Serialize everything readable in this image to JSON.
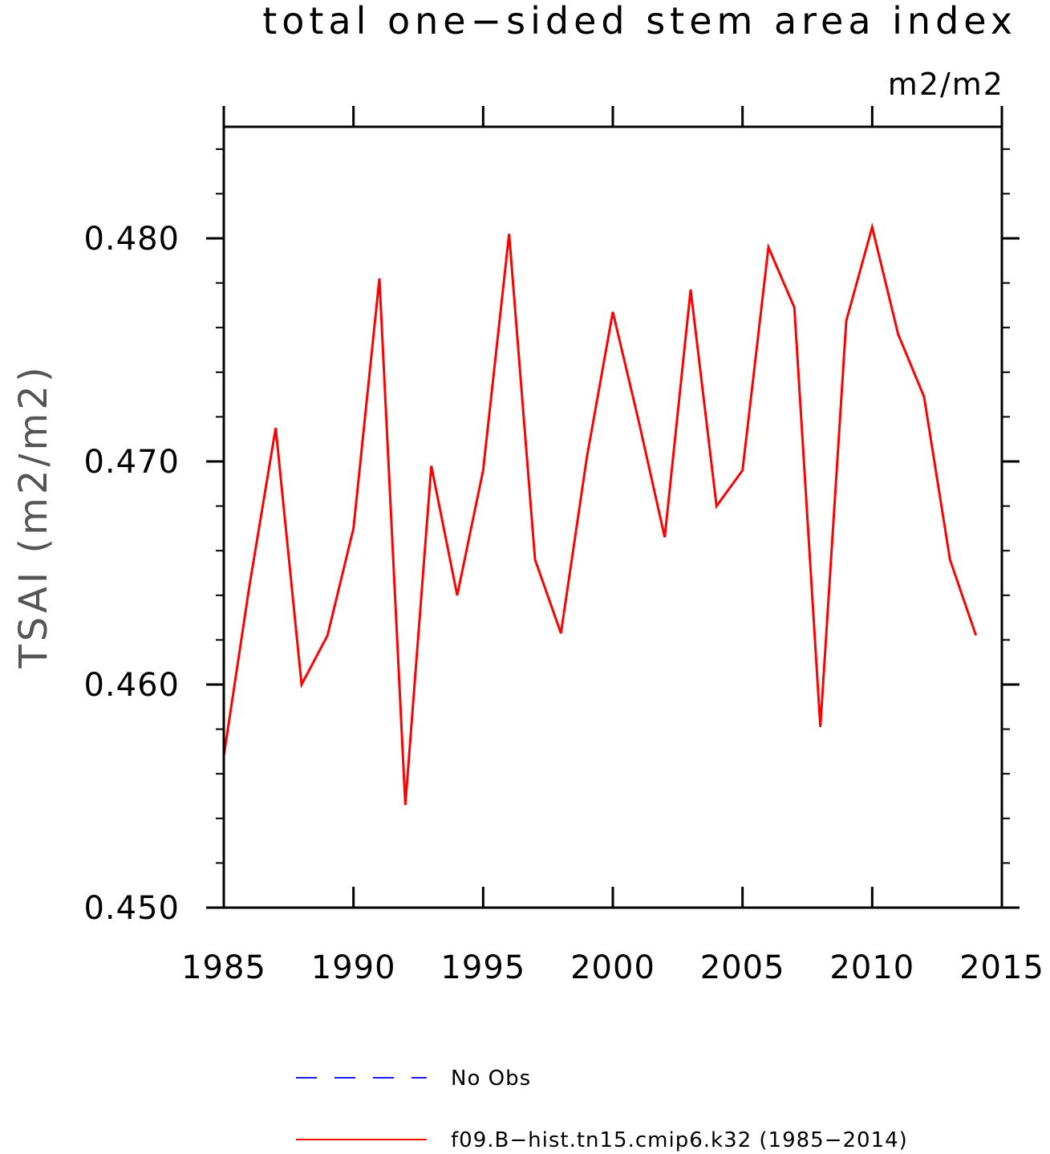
{
  "chart_data": {
    "type": "line",
    "title": "total one−sided stem area index",
    "units": "m2/m2",
    "ylabel": "TSAI  (m2/m2)",
    "xlabel": "",
    "xlim": [
      1985,
      2015
    ],
    "ylim": [
      0.45,
      0.485
    ],
    "xticks": [
      1985,
      1990,
      1995,
      2000,
      2005,
      2010,
      2015
    ],
    "xtick_labels": [
      "1985",
      "1990",
      "1995",
      "2000",
      "2005",
      "2010",
      "2015"
    ],
    "yticks": [
      0.45,
      0.46,
      0.47,
      0.48
    ],
    "ytick_labels": [
      "0.450",
      "0.460",
      "0.470",
      "0.480"
    ],
    "y_minor_step": 0.002,
    "grid": false,
    "legend_position": "bottom",
    "series": [
      {
        "name": "No Obs",
        "color": "#1a1aff",
        "dash": "dashed",
        "x": [],
        "values": []
      },
      {
        "name": "f09.B−hist.tn15.cmip6.k32 (1985−2014)",
        "color": "#ff0000",
        "dash": "solid",
        "x": [
          1985,
          1986,
          1987,
          1988,
          1989,
          1990,
          1991,
          1992,
          1993,
          1994,
          1995,
          1996,
          1997,
          1998,
          1999,
          2000,
          2001,
          2002,
          2003,
          2004,
          2005,
          2006,
          2007,
          2008,
          2009,
          2010,
          2011,
          2012,
          2013,
          2014
        ],
        "values": [
          0.4568,
          0.4645,
          0.4715,
          0.46,
          0.4622,
          0.467,
          0.4782,
          0.4546,
          0.4698,
          0.464,
          0.4696,
          0.4802,
          0.4656,
          0.4623,
          0.4702,
          0.4767,
          0.4718,
          0.4666,
          0.4777,
          0.468,
          0.4696,
          0.4796,
          0.4769,
          0.4581,
          0.4763,
          0.4805,
          0.4757,
          0.4729,
          0.4656,
          0.4622
        ]
      }
    ]
  }
}
